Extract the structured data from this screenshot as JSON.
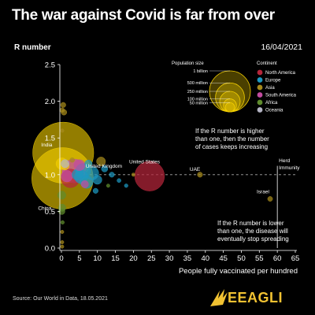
{
  "title": "The war against Covid is far from over",
  "date": "16/04/2021",
  "source": "Source: Our World in Data, 18.05.2021",
  "brand": "EEAGLI",
  "colors": {
    "North America": "#b5263a",
    "Europe": "#1d98c0",
    "Asia": "#a68a1c",
    "South America": "#c24ca0",
    "Africa": "#5f8c2d",
    "Oceania": "#b4b4c4",
    "highlight": "#f5d000",
    "brand": "#f1c232"
  },
  "chart_data": {
    "type": "scatter",
    "xlabel": "People fully vaccinated per hundred",
    "ylabel": "R number",
    "xlim": [
      0,
      65
    ],
    "ylim": [
      0,
      2.5
    ],
    "xticks": [
      "0",
      "5",
      "10",
      "15",
      "20",
      "25",
      "30",
      "35",
      "40",
      "45",
      "50",
      "55",
      "60",
      "65"
    ],
    "yticks": [
      "0.0",
      "0.5",
      "1.0",
      "1.5",
      "2.0",
      "2.5"
    ],
    "reference_line": {
      "y": 1.0,
      "style": "dashed"
    },
    "herd_immunity": {
      "x": 60,
      "label": "Herd Immunity"
    },
    "legend": {
      "size_title": "Population size",
      "sizes": [
        "1 billion",
        "500 million",
        "250 million",
        "100 million",
        "50 million"
      ],
      "continent_title": "Continent",
      "continents": [
        "North America",
        "Europe",
        "Asia",
        "South America",
        "Africa",
        "Oceania"
      ]
    },
    "annotations": [
      "If the R number is higher than one, then the number of cases keeps increasing",
      "If the R number is lower than one, the disease will eventually stop spreading"
    ],
    "labels": [
      {
        "text": "India",
        "country": "India"
      },
      {
        "text": "China",
        "country": "China"
      },
      {
        "text": "United Kingdom",
        "country": "United Kingdom"
      },
      {
        "text": "United States",
        "country": "United States"
      },
      {
        "text": "UAE",
        "country": "UAE"
      },
      {
        "text": "Israel",
        "country": "Israel"
      }
    ],
    "points": [
      {
        "country": "India",
        "continent": "Asia",
        "x": 0.5,
        "y": 1.3,
        "pop": 1380,
        "highlight": true
      },
      {
        "country": "China",
        "continent": "Asia",
        "x": 0.3,
        "y": 0.95,
        "pop": 1400,
        "highlight": true
      },
      {
        "country": "United States",
        "continent": "North America",
        "x": 24.5,
        "y": 0.98,
        "pop": 330
      },
      {
        "country": "United Kingdom",
        "continent": "Europe",
        "x": 8.5,
        "y": 1.02,
        "pop": 67
      },
      {
        "country": "UAE",
        "continent": "Asia",
        "x": 38.5,
        "y": 1.0,
        "pop": 10
      },
      {
        "country": "Israel",
        "continent": "Asia",
        "x": 58,
        "y": 0.67,
        "pop": 9
      },
      {
        "country": "",
        "continent": "Asia",
        "x": 0.5,
        "y": 1.95,
        "pop": 10
      },
      {
        "country": "",
        "continent": "Asia",
        "x": 0.2,
        "y": 1.88,
        "pop": 8
      },
      {
        "country": "",
        "continent": "Asia",
        "x": 0.7,
        "y": 1.85,
        "pop": 12
      },
      {
        "country": "",
        "continent": "Asia",
        "x": 0.2,
        "y": 1.6,
        "pop": 5
      },
      {
        "country": "",
        "continent": "Asia",
        "x": 0.1,
        "y": 1.15,
        "pop": 50,
        "highlight": true
      },
      {
        "country": "",
        "continent": "Asia",
        "x": 1.0,
        "y": 1.12,
        "pop": 25,
        "highlight": true
      },
      {
        "country": "",
        "continent": "Asia",
        "x": 3.0,
        "y": 1.2,
        "pop": 8
      },
      {
        "country": "",
        "continent": "South America",
        "x": 3.5,
        "y": 1.05,
        "pop": 210
      },
      {
        "country": "",
        "continent": "South America",
        "x": 1.5,
        "y": 0.98,
        "pop": 50
      },
      {
        "country": "",
        "continent": "South America",
        "x": 5.0,
        "y": 1.13,
        "pop": 45
      },
      {
        "country": "",
        "continent": "South America",
        "x": 6.5,
        "y": 0.87,
        "pop": 20
      },
      {
        "country": "",
        "continent": "North America",
        "x": 2.5,
        "y": 0.95,
        "pop": 128
      },
      {
        "country": "",
        "continent": "Europe",
        "x": 6.0,
        "y": 1.05,
        "pop": 83
      },
      {
        "country": "",
        "continent": "Europe",
        "x": 5.5,
        "y": 0.97,
        "pop": 67
      },
      {
        "country": "",
        "continent": "Europe",
        "x": 7.0,
        "y": 0.9,
        "pop": 60
      },
      {
        "country": "",
        "continent": "Europe",
        "x": 4.5,
        "y": 1.0,
        "pop": 47
      },
      {
        "country": "",
        "continent": "Europe",
        "x": 7.5,
        "y": 1.15,
        "pop": 20
      },
      {
        "country": "",
        "continent": "Europe",
        "x": 10.0,
        "y": 0.93,
        "pop": 30
      },
      {
        "country": "",
        "continent": "Europe",
        "x": 12.0,
        "y": 1.08,
        "pop": 15
      },
      {
        "country": "",
        "continent": "Europe",
        "x": 14.0,
        "y": 1.0,
        "pop": 10
      },
      {
        "country": "",
        "continent": "Europe",
        "x": 16.0,
        "y": 0.92,
        "pop": 6
      },
      {
        "country": "",
        "continent": "Europe",
        "x": 18.0,
        "y": 0.85,
        "pop": 5
      },
      {
        "country": "",
        "continent": "Europe",
        "x": 9.5,
        "y": 0.78,
        "pop": 10
      },
      {
        "country": "",
        "continent": "Asia",
        "x": 11.0,
        "y": 1.18,
        "pop": 30
      },
      {
        "country": "",
        "continent": "Africa",
        "x": 0.1,
        "y": 0.72,
        "pop": 25
      },
      {
        "country": "",
        "continent": "Africa",
        "x": 0.2,
        "y": 0.55,
        "pop": 20
      },
      {
        "country": "",
        "continent": "Africa",
        "x": 0.1,
        "y": 0.5,
        "pop": 15
      },
      {
        "country": "",
        "continent": "Africa",
        "x": 0.3,
        "y": 0.35,
        "pop": 5
      },
      {
        "country": "",
        "continent": "Asia",
        "x": 0.2,
        "y": 0.22,
        "pop": 3
      },
      {
        "country": "",
        "continent": "Asia",
        "x": 0.2,
        "y": 0.08,
        "pop": 3
      },
      {
        "country": "",
        "continent": "Asia",
        "x": 0.2,
        "y": 0.02,
        "pop": 2
      },
      {
        "country": "",
        "continent": "Oceania",
        "x": 1.0,
        "y": 1.15,
        "pop": 25
      },
      {
        "country": "",
        "continent": "Africa",
        "x": 13.0,
        "y": 0.85,
        "pop": 3
      },
      {
        "country": "",
        "continent": "Asia",
        "x": 20.0,
        "y": 1.0,
        "pop": 2
      }
    ]
  }
}
